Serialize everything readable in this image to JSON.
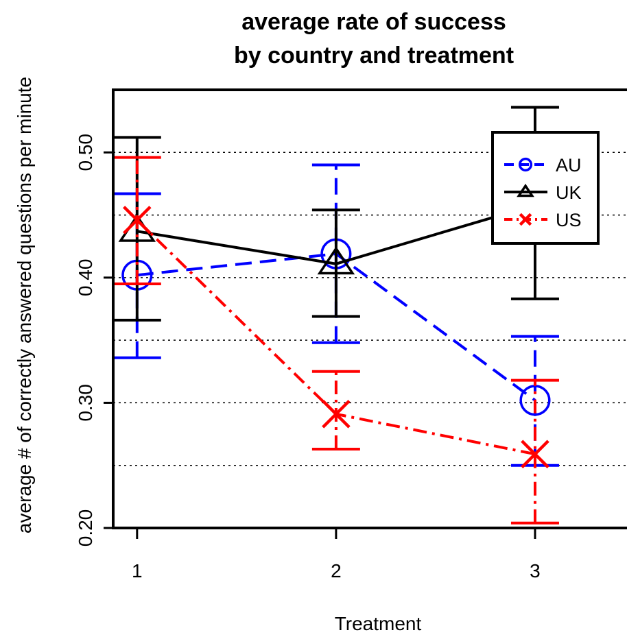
{
  "chart_data": {
    "type": "line",
    "title": "average rate of success",
    "subtitle": "by country and treatment",
    "xlabel": "Treatment",
    "ylabel": "average # of correctly answered questions per minute",
    "x": [
      1,
      2,
      3
    ],
    "xlim": [
      0.88,
      3.5
    ],
    "ylim": [
      0.2,
      0.55
    ],
    "y_ticks": [
      0.2,
      0.3,
      0.4,
      0.5
    ],
    "y_tick_labels": [
      "0.20",
      "0.30",
      "0.40",
      "0.50"
    ],
    "x_ticks": [
      1,
      2,
      3
    ],
    "x_tick_labels": [
      "1",
      "2",
      "3"
    ],
    "gridlines_y": [
      0.2,
      0.25,
      0.3,
      0.35,
      0.4,
      0.45,
      0.5
    ],
    "grid": "horizontal dotted",
    "legend_position": "top-right",
    "error_bars": true,
    "series": [
      {
        "name": "AU",
        "color": "#0000ff",
        "line_style": "dashed",
        "marker": "circle",
        "values": [
          0.402,
          0.419,
          0.302
        ],
        "lower": [
          0.336,
          0.348,
          0.25
        ],
        "upper": [
          0.467,
          0.49,
          0.353
        ]
      },
      {
        "name": "UK",
        "color": "#000000",
        "line_style": "solid",
        "marker": "triangle",
        "values": [
          0.437,
          0.411,
          0.458
        ],
        "lower": [
          0.366,
          0.369,
          0.383
        ],
        "upper": [
          0.512,
          0.454,
          0.536
        ]
      },
      {
        "name": "US",
        "color": "#ff0000",
        "line_style": "dashdot",
        "marker": "x",
        "values": [
          0.446,
          0.291,
          0.259
        ],
        "lower": [
          0.395,
          0.263,
          0.204
        ],
        "upper": [
          0.496,
          0.325,
          0.318
        ]
      }
    ]
  }
}
